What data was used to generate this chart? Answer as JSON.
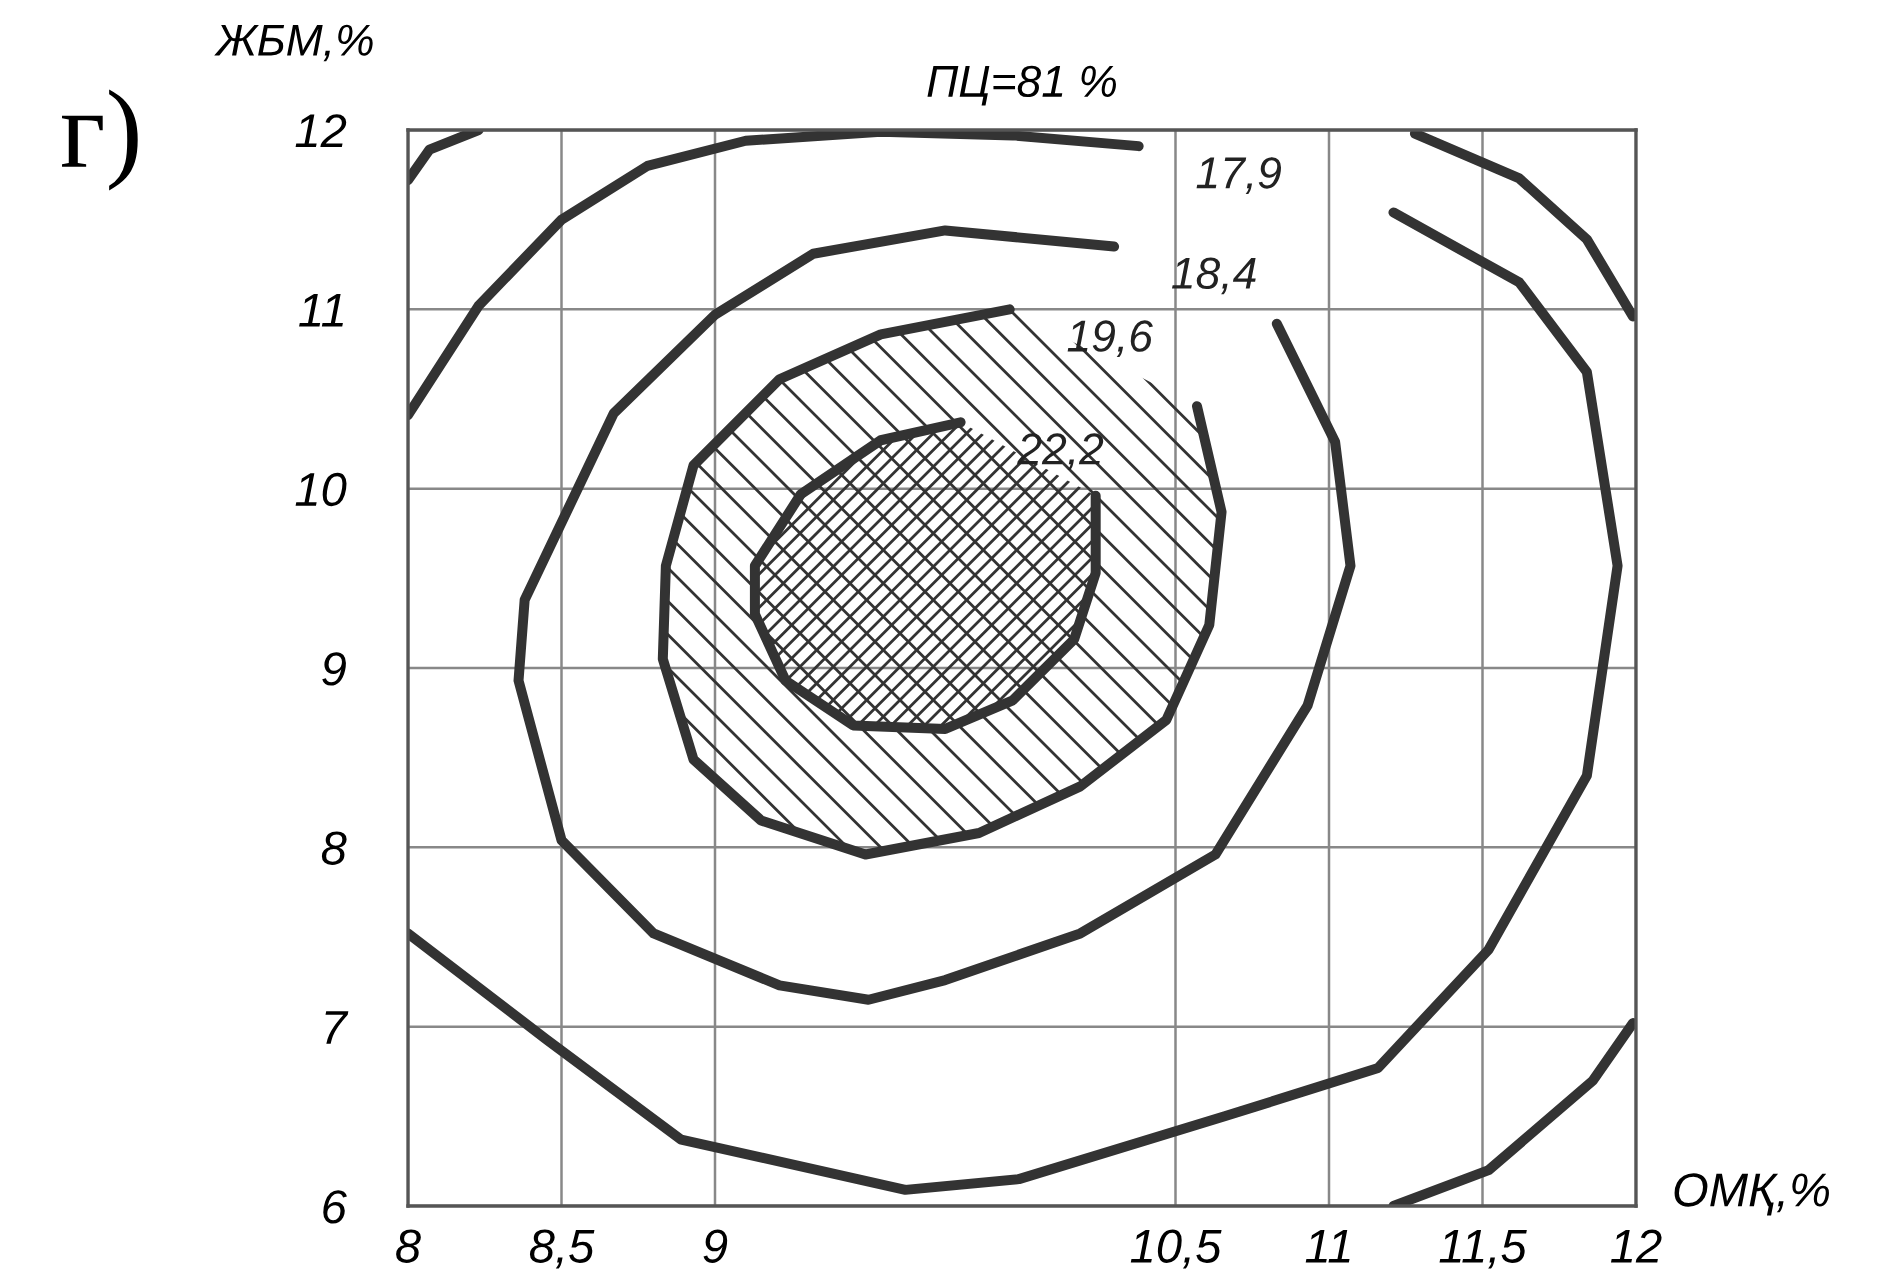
{
  "chart_data": {
    "type": "line",
    "title": "ПЦ=81 %",
    "xlabel": "ОМҚ,%",
    "ylabel": "ЖБМ,%",
    "xlim": [
      8,
      12
    ],
    "ylim": [
      6,
      12
    ],
    "xticks": [
      8,
      {
        "value": 8.5,
        "label": "8,5"
      },
      9,
      {
        "value": 10.5,
        "label": "10,5"
      },
      11,
      {
        "value": 11.5,
        "label": "11,5"
      },
      12
    ],
    "yticks": [
      6,
      7,
      8,
      9,
      10,
      11,
      12
    ],
    "grid": true,
    "marker": "none",
    "line_style": "solid",
    "series": [
      {
        "color": "#333333",
        "x": [
          8.0,
          8.07,
          8.23
        ],
        "values": [
          11.72,
          11.89,
          12.0
        ]
      },
      {
        "name": "17,9",
        "color": "#333333",
        "x": [
          8.0,
          8.23,
          8.5,
          8.78,
          9.1,
          9.54,
          9.97,
          10.38,
          null,
          8.0,
          8.45,
          8.89,
          9.62,
          9.99,
          10.66,
          11.16,
          11.52,
          11.84,
          11.94,
          11.84,
          11.62,
          11.21
        ],
        "values": [
          10.41,
          11.02,
          11.5,
          11.8,
          11.94,
          11.99,
          11.97,
          11.91,
          null,
          7.52,
          6.93,
          6.37,
          6.09,
          6.15,
          6.5,
          6.77,
          7.43,
          8.4,
          9.57,
          10.65,
          11.15,
          11.54
        ]
      },
      {
        "color": "#333333",
        "x": [
          11.28,
          11.62,
          11.84,
          11.99
        ],
        "values": [
          11.98,
          11.73,
          11.39,
          10.96
        ]
      },
      {
        "color": "#333333",
        "x": [
          11.21,
          11.52,
          11.86,
          11.99
        ],
        "values": [
          6.0,
          6.2,
          6.7,
          7.02
        ]
      },
      {
        "name": "18,4",
        "color": "#333333",
        "x": [
          10.3,
          9.75,
          9.32,
          9.0,
          8.67,
          8.38,
          8.36,
          8.5,
          8.8,
          9.21,
          9.5,
          9.75,
          10.19,
          10.63,
          10.93,
          11.07,
          11.02,
          10.83
        ],
        "values": [
          11.35,
          11.44,
          11.31,
          10.97,
          10.42,
          9.38,
          8.93,
          8.04,
          7.52,
          7.23,
          7.15,
          7.26,
          7.52,
          7.96,
          8.79,
          9.57,
          10.26,
          10.92
        ]
      },
      {
        "name": "19,6",
        "color": "#333333",
        "x": [
          9.96,
          9.54,
          9.21,
          8.93,
          8.84,
          8.83,
          8.93,
          9.15,
          9.49,
          9.86,
          10.19,
          10.47,
          10.61,
          10.65,
          10.57
        ],
        "values": [
          11.0,
          10.86,
          10.61,
          10.13,
          9.57,
          9.05,
          8.49,
          8.15,
          7.96,
          8.08,
          8.34,
          8.71,
          9.24,
          9.87,
          10.46
        ]
      },
      {
        "name": "22,2",
        "color": "#333333",
        "x": [
          9.8,
          9.54,
          9.28,
          9.13,
          9.13,
          9.23,
          9.45,
          9.75,
          9.97,
          10.17,
          10.24,
          10.24
        ],
        "values": [
          10.37,
          10.27,
          9.97,
          9.57,
          9.3,
          8.93,
          8.68,
          8.66,
          8.82,
          9.16,
          9.53,
          9.96
        ]
      }
    ],
    "annotations": [
      "г)"
    ]
  }
}
